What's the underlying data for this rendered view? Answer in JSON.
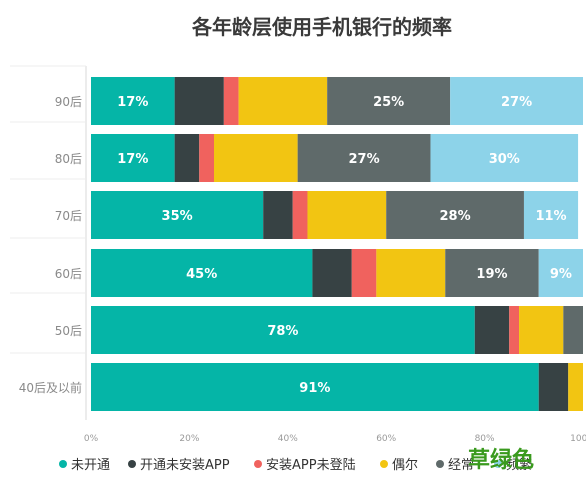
{
  "chart_data": {
    "type": "bar",
    "orientation": "horizontal",
    "stacked": true,
    "title": "各年龄层使用手机银行的频率",
    "categories": [
      "90后",
      "80后",
      "70后",
      "60后",
      "50后",
      "40后及以前"
    ],
    "series": [
      {
        "name": "未开通",
        "color": "#05b5a7",
        "values": [
          17,
          17,
          35,
          45,
          78,
          91
        ]
      },
      {
        "name": "开通未安装APP",
        "color": "#374244",
        "values": [
          10,
          5,
          6,
          8,
          7,
          6
        ]
      },
      {
        "name": "安装APP未登陆",
        "color": "#f0625e",
        "values": [
          3,
          3,
          3,
          5,
          2,
          0
        ]
      },
      {
        "name": "偶尔",
        "color": "#f2c512",
        "values": [
          18,
          17,
          16,
          14,
          9,
          3
        ]
      },
      {
        "name": "经常",
        "color": "#5f6a6a",
        "values": [
          25,
          27,
          28,
          19,
          4,
          0
        ]
      },
      {
        "name": "频繁",
        "color": "#8dd3e9",
        "values": [
          27,
          30,
          11,
          9,
          0,
          0
        ]
      }
    ],
    "data_labels": [
      [
        "17%",
        "",
        "",
        "",
        "25%",
        "27%"
      ],
      [
        "17%",
        "",
        "",
        "",
        "27%",
        "30%"
      ],
      [
        "35%",
        "",
        "",
        "",
        "28%",
        "11%"
      ],
      [
        "45%",
        "",
        "",
        "",
        "19%",
        "9%"
      ],
      [
        "78%",
        "",
        "",
        "",
        "",
        ""
      ],
      [
        "91%",
        "",
        "",
        "",
        "",
        ""
      ]
    ],
    "xlim": [
      0,
      100
    ],
    "xticks": [
      "0%",
      "20%",
      "40%",
      "60%",
      "80%",
      "100%"
    ],
    "legend_labels": [
      "未开通",
      "开通未安装APP",
      "安装APP未登陆",
      "偶尔",
      "经常",
      "频繁"
    ],
    "legend_position": "bottom",
    "grid": false
  },
  "watermark": "草绿色"
}
